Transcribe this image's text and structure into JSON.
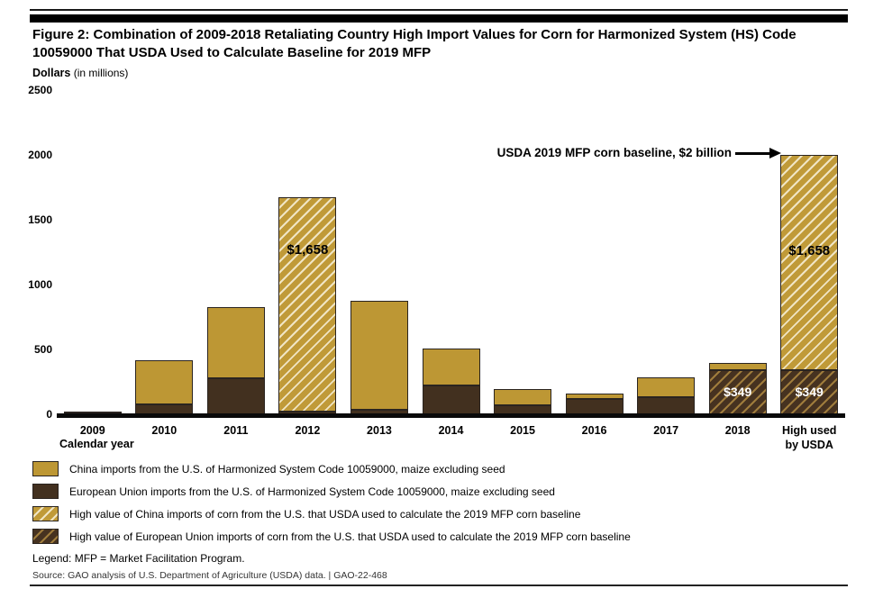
{
  "page": {
    "legend_note": "Legend: MFP = Market Facilitation Program.",
    "source_line": "Source: GAO analysis of U.S. Department of Agriculture (USDA) data.  |  GAO-22-468"
  },
  "colors": {
    "china_gold": "#BD9734",
    "eu_brown": "#42301F",
    "china_high_hatch_line": "#F0E5C4",
    "eu_high_hatch_line": "#9F7C3C",
    "axis_black": "#000000"
  },
  "chart_data": {
    "type": "bar",
    "stacked": true,
    "title": "Figure 2: Combination of 2009-2018 Retaliating Country High Import Values for Corn for Harmonized System (HS) Code 10059000 That USDA Used to Calculate Baseline for 2019 MFP",
    "ylabel": "Dollars",
    "ylabel_note": "(in millions)",
    "xlabel": "Calendar year",
    "ylim": [
      0,
      2500
    ],
    "yticks": [
      0,
      500,
      1000,
      1500,
      2000,
      2500
    ],
    "grid": false,
    "legend_position": "below",
    "annotation": "USDA 2019 MFP corn baseline, $2 billion",
    "annotation_points_to": "High used by USDA",
    "categories": [
      "2009",
      "2010",
      "2011",
      "2012",
      "2013",
      "2014",
      "2015",
      "2016",
      "2017",
      "2018",
      "High used\nby USDA"
    ],
    "bars": [
      {
        "category": "2009",
        "segments": [
          {
            "series": "eu",
            "value": 25
          },
          {
            "series": "china",
            "value": 5
          }
        ]
      },
      {
        "category": "2010",
        "segments": [
          {
            "series": "eu",
            "value": 80
          },
          {
            "series": "china",
            "value": 345
          }
        ]
      },
      {
        "category": "2011",
        "segments": [
          {
            "series": "eu",
            "value": 285
          },
          {
            "series": "china",
            "value": 550
          }
        ]
      },
      {
        "category": "2012",
        "segments": [
          {
            "series": "eu",
            "value": 25
          },
          {
            "series": "china_high",
            "value": 1658,
            "label": "$1,658",
            "label_frac": 0.25
          }
        ]
      },
      {
        "category": "2013",
        "segments": [
          {
            "series": "eu",
            "value": 45
          },
          {
            "series": "china",
            "value": 835
          }
        ]
      },
      {
        "category": "2014",
        "segments": [
          {
            "series": "eu",
            "value": 230
          },
          {
            "series": "china",
            "value": 285
          }
        ]
      },
      {
        "category": "2015",
        "segments": [
          {
            "series": "eu",
            "value": 75
          },
          {
            "series": "china",
            "value": 125
          }
        ]
      },
      {
        "category": "2016",
        "segments": [
          {
            "series": "eu",
            "value": 125
          },
          {
            "series": "china",
            "value": 45
          }
        ]
      },
      {
        "category": "2017",
        "segments": [
          {
            "series": "eu",
            "value": 140
          },
          {
            "series": "china",
            "value": 155
          }
        ]
      },
      {
        "category": "2018",
        "segments": [
          {
            "series": "eu_high",
            "value": 349,
            "label": "$349",
            "label_frac": 0.5
          },
          {
            "series": "china",
            "value": 55
          }
        ]
      },
      {
        "category": "High used\nby USDA",
        "segments": [
          {
            "series": "eu_high",
            "value": 349,
            "label": "$349",
            "label_frac": 0.5
          },
          {
            "series": "china_high",
            "value": 1658,
            "label": "$1,658",
            "label_frac": 0.45
          }
        ]
      }
    ],
    "legend": [
      {
        "series": "china",
        "label": "China imports from the U.S. of Harmonized System Code 10059000, maize excluding seed"
      },
      {
        "series": "eu",
        "label": "European Union imports from the U.S. of Harmonized System Code 10059000, maize excluding seed"
      },
      {
        "series": "china_high",
        "label": "High value of China imports of corn from the U.S. that USDA used to calculate the 2019 MFP corn baseline"
      },
      {
        "series": "eu_high",
        "label": "High value of European Union imports of corn from the U.S. that USDA used to calculate the 2019 MFP corn baseline"
      }
    ]
  }
}
